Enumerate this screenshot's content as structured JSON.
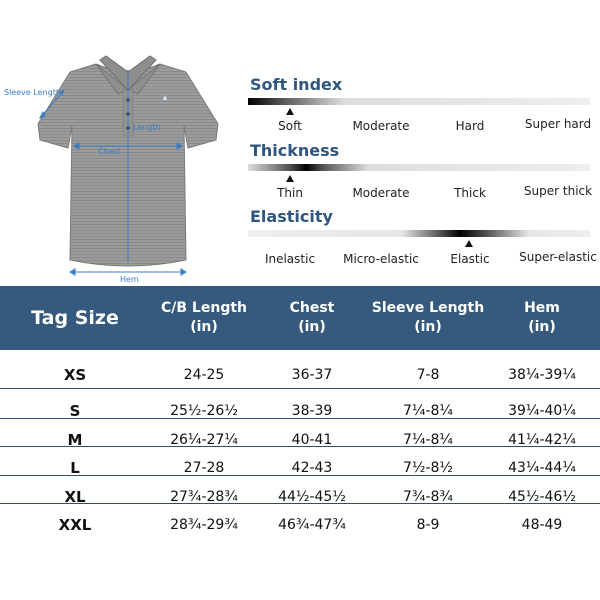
{
  "measurements": {
    "sleeve": "Sleeve Length",
    "length": "Length",
    "chest": "Chest",
    "hem": "Hem"
  },
  "scales": [
    {
      "title": "Soft index",
      "options": [
        "Soft",
        "Moderate",
        "Hard",
        "Super hard"
      ],
      "selected": 0
    },
    {
      "title": "Thickness",
      "options": [
        "Thin",
        "Moderate",
        "Thick",
        "Super thick"
      ],
      "selected": 0
    },
    {
      "title": "Elasticity",
      "options": [
        "Inelastic",
        "Micro-elastic",
        "Elastic",
        "Super-elastic"
      ],
      "selected": 2
    }
  ],
  "table": {
    "headers": [
      {
        "line1": "Tag Size",
        "line2": ""
      },
      {
        "line1": "C/B Length",
        "line2": "(in)"
      },
      {
        "line1": "Chest",
        "line2": "(in)"
      },
      {
        "line1": "Sleeve Length",
        "line2": "(in)"
      },
      {
        "line1": "Hem",
        "line2": "(in)"
      }
    ],
    "rows": [
      [
        "XS",
        "24-25",
        "36-37",
        "7-8",
        "38¼-39¼"
      ],
      [
        "S",
        "25½-26½",
        "38-39",
        "7¼-8¼",
        "39¼-40¼"
      ],
      [
        "M",
        "26¼-27¼",
        "40-41",
        "7¼-8¼",
        "41¼-42¼"
      ],
      [
        "L",
        "27-28",
        "42-43",
        "7½-8½",
        "43¼-44¼"
      ],
      [
        "XL",
        "27¾-28¾",
        "44½-45½",
        "7¾-8¾",
        "45½-46½"
      ],
      [
        "XXL",
        "28¾-29¾",
        "46¾-47¾",
        "8-9",
        "48-49"
      ]
    ]
  },
  "colors": {
    "header_bg": "#355a7e",
    "title_blue": "#2e5680",
    "measure_blue": "#3a7fc4",
    "shirt_gray": "#9a9a9a"
  }
}
